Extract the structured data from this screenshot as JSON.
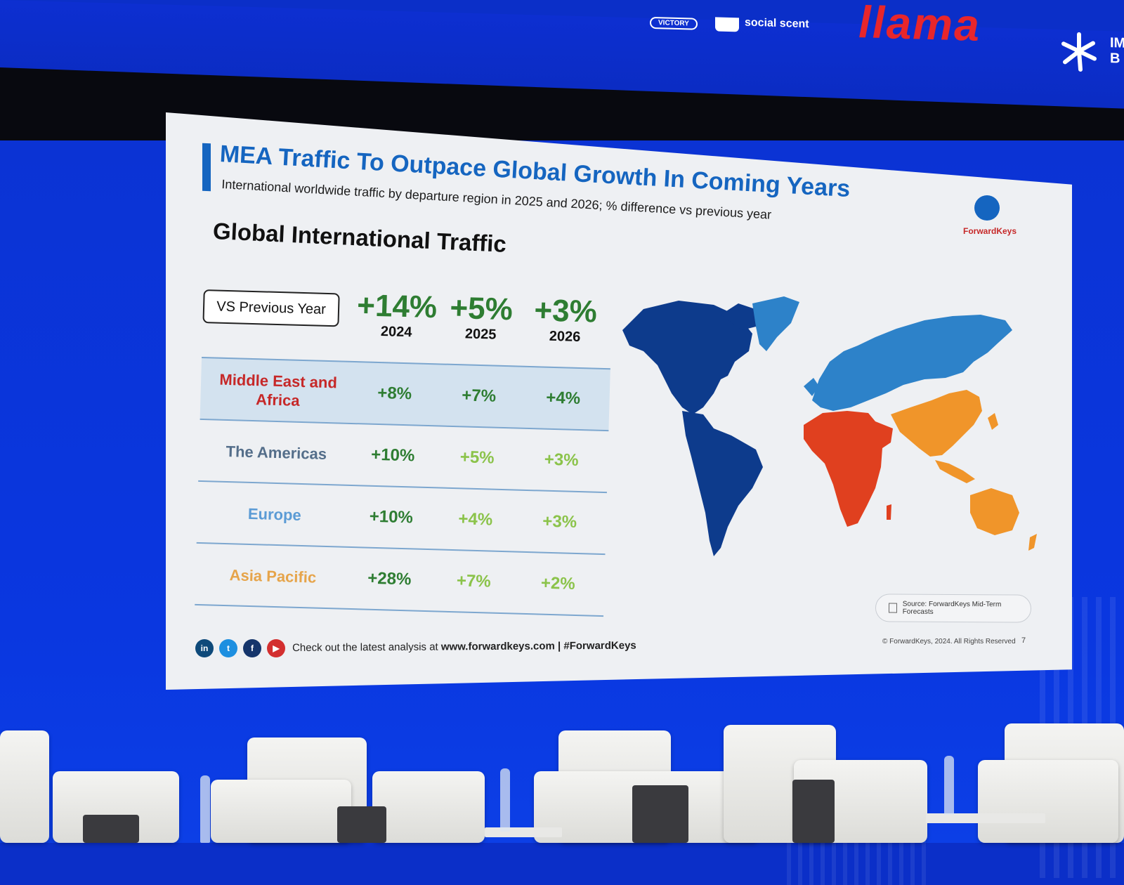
{
  "banner": {
    "sponsors": [
      {
        "name": "VICTORY"
      },
      {
        "name": "social scent"
      },
      {
        "name": "llama"
      },
      {
        "name": "IM B"
      }
    ]
  },
  "slide": {
    "title": "MEA Traffic To Outpace Global Growth In Coming Years",
    "subtitle": "International worldwide traffic by departure region in 2025 and 2026; % difference vs previous year",
    "logo_text": "ForwardKeys",
    "section_title": "Global International Traffic",
    "vs_label": "VS Previous Year",
    "years": [
      {
        "pct": "+14%",
        "year": "2024"
      },
      {
        "pct": "+5%",
        "year": "2025"
      },
      {
        "pct": "+3%",
        "year": "2026"
      }
    ],
    "rows": [
      {
        "label": "Middle East and Africa",
        "values": [
          "+8%",
          "+7%",
          "+4%"
        ],
        "label_color": "#c62828",
        "highlight": true
      },
      {
        "label": "The Americas",
        "values": [
          "+10%",
          "+5%",
          "+3%"
        ],
        "label_color": "#546e8a",
        "highlight": false
      },
      {
        "label": "Europe",
        "values": [
          "+10%",
          "+4%",
          "+3%"
        ],
        "label_color": "#5b9bd5",
        "highlight": false
      },
      {
        "label": "Asia Pacific",
        "values": [
          "+28%",
          "+7%",
          "+2%"
        ],
        "label_color": "#e6a44a",
        "highlight": false
      }
    ],
    "value_colors": {
      "strong": "#2e7d32",
      "light": "#8bc34a"
    },
    "map_regions": [
      {
        "name": "Americas",
        "color": "#0d3b8c"
      },
      {
        "name": "Europe & North Asia",
        "color": "#2d82c9"
      },
      {
        "name": "Middle East and Africa",
        "color": "#e0401f"
      },
      {
        "name": "Asia Pacific",
        "color": "#f0952a"
      }
    ],
    "source": "Source: ForwardKeys Mid-Term Forecasts",
    "footer_prefix": "Check out the latest analysis at ",
    "footer_link": "www.forwardkeys.com | #ForwardKeys",
    "copyright": "© ForwardKeys, 2024. All Rights Reserved",
    "page_number": "7",
    "socials": [
      "linkedin-icon",
      "twitter-icon",
      "facebook-icon",
      "youtube-icon"
    ]
  }
}
